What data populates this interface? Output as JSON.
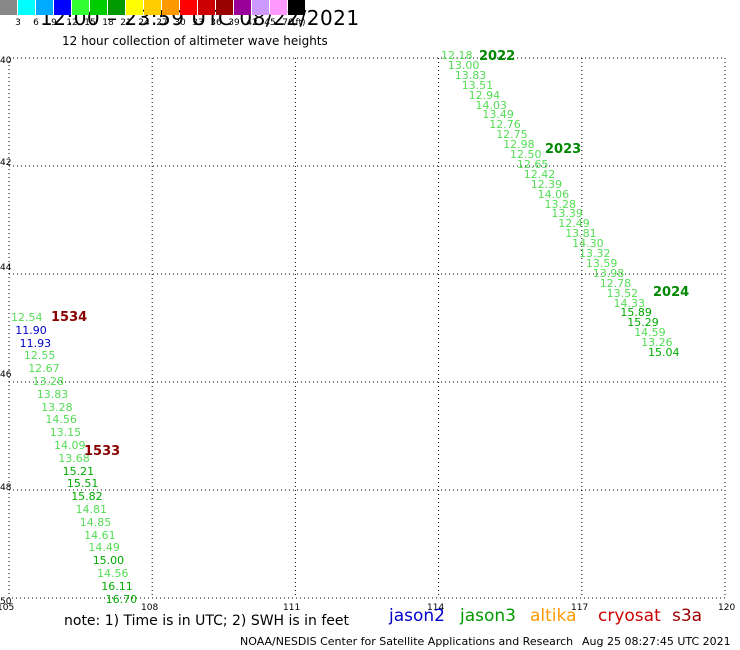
{
  "header": {
    "title": "12:00 – 23:59 UTC 08/22/2021",
    "subtitle": "12 hour collection of altimeter wave heights"
  },
  "legend": {
    "colors": [
      "#888888",
      "#00ffff",
      "#00aaff",
      "#0000ff",
      "#33ff33",
      "#00cc00",
      "#009900",
      "#ffff00",
      "#ffcc00",
      "#ff9900",
      "#ff0000",
      "#cc0000",
      "#990000",
      "#990099",
      "#cc99ff",
      "#ff99ff",
      "#000000"
    ],
    "labels": [
      "3",
      "6",
      "9",
      "12",
      "15",
      "18",
      "21",
      "24",
      "27",
      "30",
      "33",
      "36",
      "39",
      "42",
      "45",
      "70"
    ],
    "unit": "(ft)"
  },
  "axes": {
    "x_ticks": [
      "105",
      "108",
      "111",
      "114",
      "117",
      "120"
    ],
    "y_ticks": [
      "40",
      "42",
      "44",
      "46",
      "48",
      "50"
    ]
  },
  "passes": [
    "2022",
    "2023",
    "2024",
    "1534",
    "1533"
  ],
  "tracks": {
    "northeast": [
      "12.18",
      "13.00",
      "13.83",
      "13.51",
      "12.94",
      "14.03",
      "13.49",
      "12.76",
      "12.75",
      "12.98",
      "12.50",
      "12.65",
      "12.42",
      "12.39",
      "14.06",
      "13.28",
      "13.39",
      "12.49",
      "13.81",
      "14.30",
      "13.32",
      "13.59",
      "13.98",
      "12.78",
      "13.52",
      "14.33",
      "15.89",
      "15.29",
      "14.59",
      "13.26",
      "15.04"
    ],
    "southwest": [
      "12.54",
      "11.90",
      "11.93",
      "12.55",
      "12.67",
      "13.28",
      "13.83",
      "13.28",
      "14.56",
      "13.15",
      "14.09",
      "13.68",
      "15.21",
      "15.51",
      "15.82",
      "14.81",
      "14.85",
      "14.61",
      "14.49",
      "15.00",
      "14.56",
      "16.11",
      "16.70"
    ]
  },
  "footer": {
    "note": "note:  1) Time is in UTC;  2) SWH is in feet",
    "satellites": [
      "jason2",
      "jason3",
      "altika",
      "cryosat",
      "s3a"
    ],
    "satellite_colors": [
      "#0000cc",
      "#009900",
      "#ff9900",
      "#cc0000",
      "#990000"
    ],
    "credit": "NOAA/NESDIS Center for Satellite Applications and Research",
    "timestamp": "Aug 25 08:27:45 UTC 2021"
  }
}
